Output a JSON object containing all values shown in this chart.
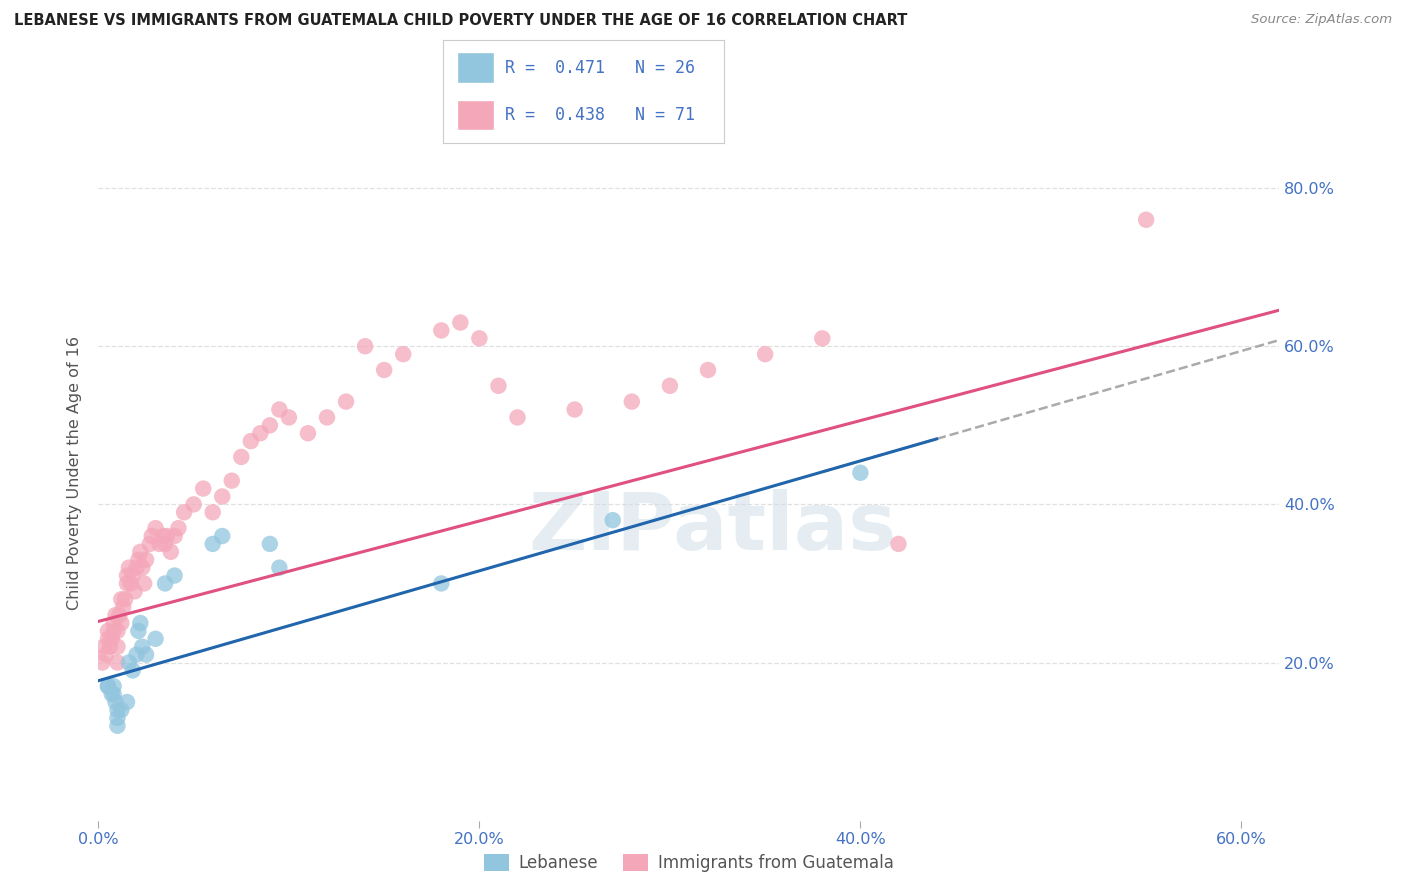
{
  "title": "LEBANESE VS IMMIGRANTS FROM GUATEMALA CHILD POVERTY UNDER THE AGE OF 16 CORRELATION CHART",
  "source": "Source: ZipAtlas.com",
  "ylabel": "Child Poverty Under the Age of 16",
  "xlim": [
    0.0,
    0.62
  ],
  "ylim": [
    0.0,
    0.88
  ],
  "xtick_labels": [
    "0.0%",
    "20.0%",
    "40.0%",
    "60.0%"
  ],
  "xtick_vals": [
    0.0,
    0.2,
    0.4,
    0.6
  ],
  "ytick_labels_right": [
    "20.0%",
    "40.0%",
    "60.0%",
    "80.0%"
  ],
  "ytick_vals": [
    0.2,
    0.4,
    0.6,
    0.8
  ],
  "watermark": "ZIPatlas",
  "color_blue": "#92c5de",
  "color_pink": "#f4a7b9",
  "color_line_blue": "#2166ac",
  "color_line_pink": "#e05080",
  "color_dashed": "#aaaaaa",
  "color_title": "#222222",
  "color_axis_labels": "#4472c4",
  "color_source": "#888888",
  "grid_color": "#dddddd",
  "label_blue": "Lebanese",
  "label_pink": "Immigrants from Guatemala",
  "blue_intercept": 0.177,
  "blue_slope": 0.695,
  "pink_intercept": 0.252,
  "pink_slope": 0.635,
  "blue_x": [
    0.005,
    0.005,
    0.007,
    0.008,
    0.008,
    0.009,
    0.01,
    0.01,
    0.01,
    0.012,
    0.015,
    0.016,
    0.018,
    0.02,
    0.021,
    0.022,
    0.023,
    0.025,
    0.03,
    0.035,
    0.04,
    0.06,
    0.065,
    0.09,
    0.095,
    0.18,
    0.27,
    0.4
  ],
  "blue_y": [
    0.17,
    0.17,
    0.16,
    0.17,
    0.16,
    0.15,
    0.14,
    0.13,
    0.12,
    0.14,
    0.15,
    0.2,
    0.19,
    0.21,
    0.24,
    0.25,
    0.22,
    0.21,
    0.23,
    0.3,
    0.31,
    0.35,
    0.36,
    0.35,
    0.32,
    0.3,
    0.38,
    0.44
  ],
  "pink_x": [
    0.002,
    0.003,
    0.004,
    0.005,
    0.005,
    0.006,
    0.007,
    0.008,
    0.008,
    0.009,
    0.01,
    0.01,
    0.01,
    0.011,
    0.012,
    0.012,
    0.013,
    0.014,
    0.015,
    0.015,
    0.016,
    0.017,
    0.018,
    0.019,
    0.02,
    0.021,
    0.022,
    0.023,
    0.024,
    0.025,
    0.027,
    0.028,
    0.03,
    0.032,
    0.034,
    0.035,
    0.036,
    0.038,
    0.04,
    0.042,
    0.045,
    0.05,
    0.055,
    0.06,
    0.065,
    0.07,
    0.075,
    0.08,
    0.085,
    0.09,
    0.095,
    0.1,
    0.11,
    0.12,
    0.13,
    0.14,
    0.15,
    0.16,
    0.18,
    0.19,
    0.2,
    0.21,
    0.22,
    0.25,
    0.28,
    0.3,
    0.32,
    0.35,
    0.38,
    0.42,
    0.55
  ],
  "pink_y": [
    0.2,
    0.22,
    0.21,
    0.23,
    0.24,
    0.22,
    0.23,
    0.25,
    0.24,
    0.26,
    0.24,
    0.22,
    0.2,
    0.26,
    0.28,
    0.25,
    0.27,
    0.28,
    0.3,
    0.31,
    0.32,
    0.3,
    0.31,
    0.29,
    0.32,
    0.33,
    0.34,
    0.32,
    0.3,
    0.33,
    0.35,
    0.36,
    0.37,
    0.35,
    0.36,
    0.35,
    0.36,
    0.34,
    0.36,
    0.37,
    0.39,
    0.4,
    0.42,
    0.39,
    0.41,
    0.43,
    0.46,
    0.48,
    0.49,
    0.5,
    0.52,
    0.51,
    0.49,
    0.51,
    0.53,
    0.6,
    0.57,
    0.59,
    0.62,
    0.63,
    0.61,
    0.55,
    0.51,
    0.52,
    0.53,
    0.55,
    0.57,
    0.59,
    0.61,
    0.35,
    0.76
  ]
}
